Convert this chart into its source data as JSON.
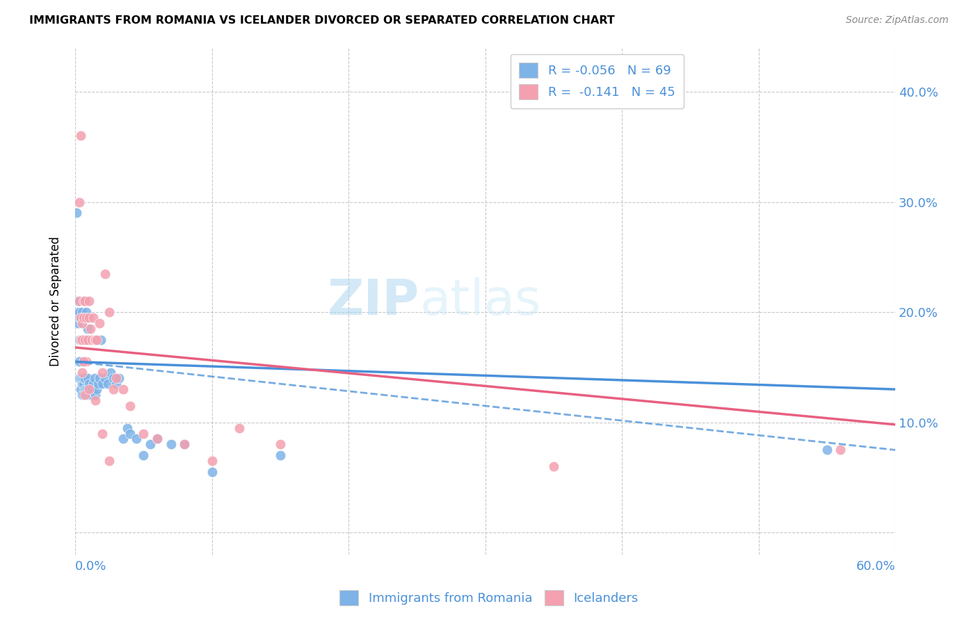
{
  "title": "IMMIGRANTS FROM ROMANIA VS ICELANDER DIVORCED OR SEPARATED CORRELATION CHART",
  "source": "Source: ZipAtlas.com",
  "ylabel": "Divorced or Separated",
  "legend_label1": "R = -0.056   N = 69",
  "legend_label2": "R =  -0.141   N = 45",
  "ytick_values": [
    0.0,
    0.1,
    0.2,
    0.3,
    0.4
  ],
  "xlim": [
    0.0,
    0.6
  ],
  "ylim": [
    -0.02,
    0.44
  ],
  "color_romania": "#7eb3e8",
  "color_icelander": "#f4a0b0",
  "color_romania_line": "#4a90d9",
  "color_icelander_line": "#e86080",
  "color_axis_text": "#4a90d9",
  "watermark_zip": "ZIP",
  "watermark_atlas": "atlas",
  "romania_x": [
    0.001,
    0.002,
    0.002,
    0.002,
    0.003,
    0.003,
    0.003,
    0.003,
    0.003,
    0.004,
    0.004,
    0.004,
    0.004,
    0.004,
    0.005,
    0.005,
    0.005,
    0.005,
    0.005,
    0.006,
    0.006,
    0.006,
    0.006,
    0.006,
    0.007,
    0.007,
    0.007,
    0.007,
    0.008,
    0.008,
    0.008,
    0.008,
    0.009,
    0.009,
    0.009,
    0.009,
    0.01,
    0.01,
    0.01,
    0.011,
    0.011,
    0.012,
    0.012,
    0.013,
    0.014,
    0.015,
    0.016,
    0.017,
    0.018,
    0.019,
    0.02,
    0.022,
    0.024,
    0.026,
    0.028,
    0.03,
    0.032,
    0.035,
    0.038,
    0.04,
    0.045,
    0.05,
    0.055,
    0.06,
    0.07,
    0.08,
    0.1,
    0.15,
    0.55
  ],
  "romania_y": [
    0.29,
    0.19,
    0.2,
    0.21,
    0.14,
    0.155,
    0.175,
    0.195,
    0.2,
    0.13,
    0.14,
    0.175,
    0.195,
    0.21,
    0.125,
    0.135,
    0.14,
    0.175,
    0.2,
    0.125,
    0.135,
    0.14,
    0.175,
    0.195,
    0.13,
    0.14,
    0.175,
    0.21,
    0.125,
    0.13,
    0.175,
    0.2,
    0.125,
    0.13,
    0.14,
    0.185,
    0.125,
    0.135,
    0.175,
    0.125,
    0.175,
    0.125,
    0.13,
    0.135,
    0.14,
    0.125,
    0.13,
    0.135,
    0.14,
    0.175,
    0.135,
    0.14,
    0.135,
    0.145,
    0.14,
    0.135,
    0.14,
    0.085,
    0.095,
    0.09,
    0.085,
    0.07,
    0.08,
    0.085,
    0.08,
    0.08,
    0.055,
    0.07,
    0.075
  ],
  "icelander_x": [
    0.003,
    0.004,
    0.004,
    0.005,
    0.005,
    0.006,
    0.006,
    0.007,
    0.007,
    0.008,
    0.008,
    0.009,
    0.01,
    0.01,
    0.011,
    0.012,
    0.013,
    0.014,
    0.015,
    0.016,
    0.018,
    0.02,
    0.022,
    0.025,
    0.028,
    0.03,
    0.035,
    0.04,
    0.05,
    0.06,
    0.08,
    0.1,
    0.12,
    0.15,
    0.003,
    0.004,
    0.005,
    0.006,
    0.007,
    0.01,
    0.015,
    0.02,
    0.025,
    0.35,
    0.56
  ],
  "icelander_y": [
    0.21,
    0.175,
    0.195,
    0.19,
    0.175,
    0.21,
    0.195,
    0.175,
    0.21,
    0.195,
    0.155,
    0.175,
    0.195,
    0.21,
    0.185,
    0.175,
    0.195,
    0.175,
    0.175,
    0.175,
    0.19,
    0.145,
    0.235,
    0.2,
    0.13,
    0.14,
    0.13,
    0.115,
    0.09,
    0.085,
    0.08,
    0.065,
    0.095,
    0.08,
    0.3,
    0.36,
    0.145,
    0.155,
    0.125,
    0.13,
    0.12,
    0.09,
    0.065,
    0.06,
    0.075
  ],
  "romania_line_x": [
    0.0,
    0.6
  ],
  "romania_line_y": [
    0.155,
    0.13
  ],
  "icelander_line_x": [
    0.0,
    0.6
  ],
  "icelander_line_y": [
    0.168,
    0.098
  ],
  "dashed_line_x": [
    0.0,
    0.6
  ],
  "dashed_line_y": [
    0.155,
    0.075
  ]
}
